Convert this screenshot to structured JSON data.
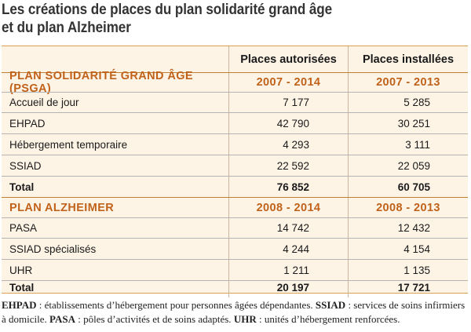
{
  "title": {
    "line1": "Les créations de places du plan solidarité grand âge",
    "line2": "et du plan Alzheimer"
  },
  "table": {
    "columns": [
      "",
      "Places autorisées",
      "Places installées"
    ],
    "sections": [
      {
        "name": "PLAN SOLIDARITÉ GRAND ÂGE (PSGA)",
        "period_autorisees": "2007 - 2014",
        "period_installees": "2007 - 2013",
        "rows": [
          {
            "label": "Accueil de jour",
            "autorisees": "7 177",
            "installees": "5 285"
          },
          {
            "label": "EHPAD",
            "autorisees": "42 790",
            "installees": "30 251"
          },
          {
            "label": "Hébergement temporaire",
            "autorisees": "4 293",
            "installees": "3 111"
          },
          {
            "label": "SSIAD",
            "autorisees": "22 592",
            "installees": "22 059"
          }
        ],
        "total": {
          "label": "Total",
          "autorisees": "76 852",
          "installees": "60 705"
        }
      },
      {
        "name": "PLAN ALZHEIMER",
        "period_autorisees": "2008 - 2014",
        "period_installees": "2008 - 2013",
        "rows": [
          {
            "label": "PASA",
            "autorisees": "14 742",
            "installees": "12 432"
          },
          {
            "label": "SSIAD spécialisés",
            "autorisees": "4 244",
            "installees": "4 154"
          },
          {
            "label": "UHR",
            "autorisees": "1 211",
            "installees": "1 135"
          }
        ],
        "total": {
          "label": "Total",
          "autorisees": "20 197",
          "installees": "17 721"
        }
      }
    ]
  },
  "footnote": {
    "ehpad_abbr": "EHPAD",
    "ehpad_def": " : établissements d’hébergement pour personnes âgées dépendantes. ",
    "ssiad_abbr": "SSIAD",
    "ssiad_def": " : services de soins infirmiers à domicile. ",
    "pasa_abbr": "PASA",
    "pasa_def": " : pôles d’activités et de soins adaptés. ",
    "uhr_abbr": "UHR",
    "uhr_def": " : unités d’hébergement renforcées."
  },
  "colors": {
    "section_text": "#c0621a",
    "background": "#fdf4e6",
    "border_accent": "#d7a052"
  }
}
